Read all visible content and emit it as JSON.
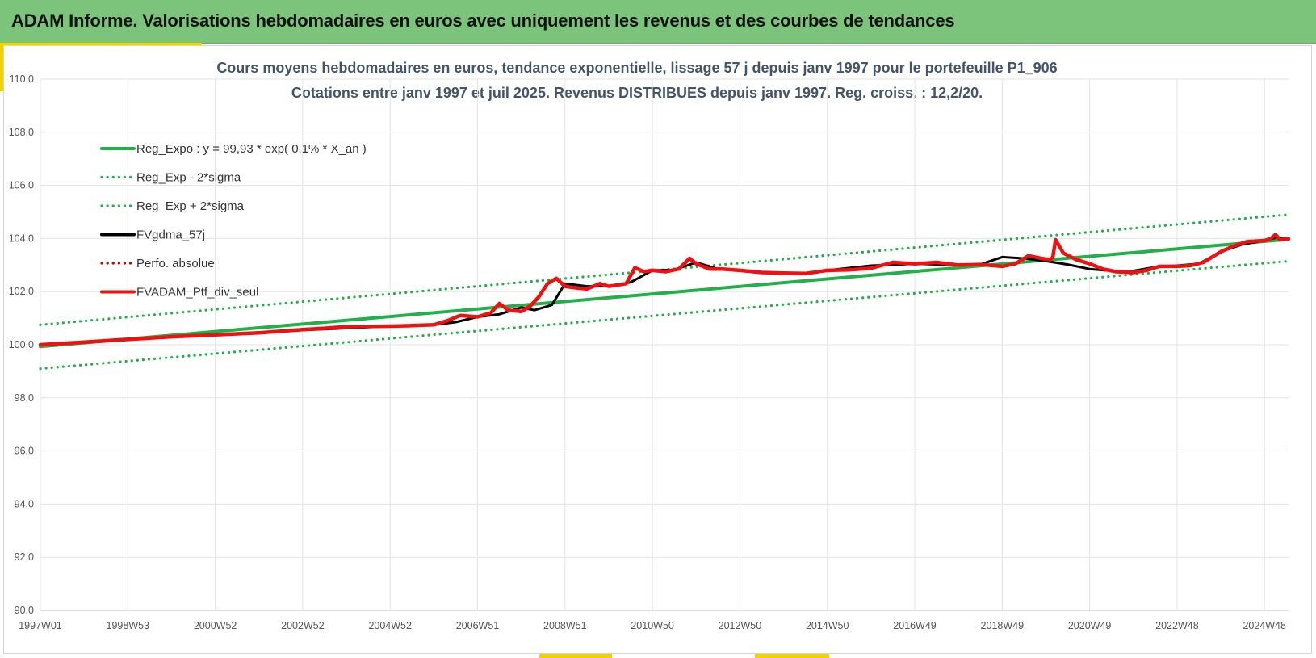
{
  "header": {
    "title": "ADAM Informe. Valorisations hebdomadaires en euros avec uniquement les revenus et des courbes de tendances"
  },
  "colors": {
    "header_bg": "#7cc47c",
    "accent": "#f2d100",
    "trend": "#22b04a",
    "fv57": "#000000",
    "main": "#ee1111",
    "title_text": "#44546a"
  },
  "chart_data": {
    "type": "line",
    "title": "Cours moyens hebdomadaires  en euros, tendance exponentielle, lissage 57 j depuis janv 1997 pour le portefeuille P1_906",
    "subtitle": "Cotations entre janv 1997 et juil 2025. Revenus DISTRIBUES depuis janv 1997. Reg. croiss. : 12,2/20.",
    "xlabel": "",
    "ylabel": "",
    "ylim": [
      90,
      110
    ],
    "yticks": [
      "110,0",
      "108,0",
      "106,0",
      "104,0",
      "102,0",
      "100,0",
      "98,0",
      "96,0",
      "94,0",
      "92,0",
      "90,0"
    ],
    "xrange": [
      1997.0,
      2025.55
    ],
    "xticks": [
      {
        "label": "1997W01",
        "x": 1997.0
      },
      {
        "label": "1998W53",
        "x": 1999.0
      },
      {
        "label": "2000W52",
        "x": 2001.0
      },
      {
        "label": "2002W52",
        "x": 2003.0
      },
      {
        "label": "2004W52",
        "x": 2005.0
      },
      {
        "label": "2006W51",
        "x": 2007.0
      },
      {
        "label": "2008W51",
        "x": 2009.0
      },
      {
        "label": "2010W50",
        "x": 2011.0
      },
      {
        "label": "2012W50",
        "x": 2013.0
      },
      {
        "label": "2014W50",
        "x": 2015.0
      },
      {
        "label": "2016W49",
        "x": 2017.0
      },
      {
        "label": "2018W49",
        "x": 2019.0
      },
      {
        "label": "2020W49",
        "x": 2021.0
      },
      {
        "label": "2022W48",
        "x": 2023.0
      },
      {
        "label": "2024W48",
        "x": 2025.0
      }
    ],
    "grid": true,
    "legend_position": "top-left",
    "series": [
      {
        "name": "Reg_Expo : y = 99,93 * exp( 0,1% *  X_an )",
        "style": "solid",
        "color": "#22b04a",
        "x": [
          1997.0,
          2025.55
        ],
        "y": [
          99.93,
          103.97
        ]
      },
      {
        "name": "Reg_Exp - 2*sigma",
        "style": "dotted",
        "color": "#22b04a",
        "x": [
          1997.0,
          2025.55
        ],
        "y": [
          99.1,
          103.15
        ]
      },
      {
        "name": "Reg_Exp + 2*sigma",
        "style": "dotted",
        "color": "#22b04a",
        "x": [
          1997.0,
          2025.55
        ],
        "y": [
          100.75,
          104.9
        ]
      },
      {
        "name": "FVgdma_57j",
        "style": "solid",
        "color": "#000000",
        "x": [
          1997.0,
          1999.0,
          2001.0,
          2003.0,
          2005.0,
          2006.0,
          2006.5,
          2007.0,
          2007.5,
          2008.0,
          2008.3,
          2008.7,
          2009.0,
          2009.5,
          2010.0,
          2010.5,
          2011.0,
          2011.5,
          2012.0,
          2012.5,
          2013.0,
          2013.5,
          2014.0,
          2014.5,
          2015.0,
          2016.0,
          2017.0,
          2018.0,
          2018.5,
          2019.0,
          2019.5,
          2020.0,
          2020.5,
          2021.0,
          2021.5,
          2022.0,
          2022.5,
          2023.0,
          2023.5,
          2024.0,
          2024.5,
          2025.0,
          2025.3,
          2025.55
        ],
        "y": [
          100.0,
          100.2,
          100.38,
          100.55,
          100.7,
          100.75,
          100.85,
          101.05,
          101.15,
          101.4,
          101.3,
          101.5,
          102.3,
          102.2,
          102.2,
          102.35,
          102.8,
          102.82,
          103.1,
          102.85,
          102.8,
          102.72,
          102.68,
          102.7,
          102.8,
          102.98,
          103.05,
          103.0,
          103.02,
          103.3,
          103.25,
          103.15,
          103.02,
          102.85,
          102.78,
          102.78,
          102.92,
          102.98,
          103.05,
          103.5,
          103.78,
          103.92,
          104.05,
          103.98
        ]
      },
      {
        "name": "Perfo. absolue",
        "style": "dotted",
        "color": "#cc0000",
        "x": [],
        "y": []
      },
      {
        "name": "FVADAM_Ptf_div_seul",
        "style": "solid",
        "color": "#ee1111",
        "x": [
          1997.0,
          1998.0,
          1999.0,
          2000.0,
          2001.0,
          2002.0,
          2003.0,
          2003.5,
          2004.0,
          2005.0,
          2005.5,
          2006.0,
          2006.3,
          2006.6,
          2007.0,
          2007.3,
          2007.5,
          2007.7,
          2008.0,
          2008.2,
          2008.4,
          2008.6,
          2008.8,
          2009.0,
          2009.2,
          2009.5,
          2009.8,
          2010.0,
          2010.2,
          2010.4,
          2010.6,
          2010.8,
          2011.0,
          2011.3,
          2011.6,
          2011.85,
          2012.0,
          2012.3,
          2012.6,
          2013.0,
          2013.5,
          2014.0,
          2014.5,
          2015.0,
          2015.5,
          2016.0,
          2016.5,
          2017.0,
          2017.5,
          2018.0,
          2018.5,
          2019.0,
          2019.3,
          2019.6,
          2019.9,
          2020.1,
          2020.16,
          2020.22,
          2020.4,
          2020.7,
          2021.0,
          2021.3,
          2021.6,
          2022.0,
          2022.3,
          2022.6,
          2023.0,
          2023.3,
          2023.6,
          2024.0,
          2024.3,
          2024.6,
          2025.0,
          2025.15,
          2025.25,
          2025.35,
          2025.55
        ],
        "y": [
          100.0,
          100.1,
          100.2,
          100.3,
          100.37,
          100.45,
          100.57,
          100.62,
          100.68,
          100.7,
          100.72,
          100.75,
          100.9,
          101.1,
          101.05,
          101.2,
          101.55,
          101.3,
          101.25,
          101.45,
          101.8,
          102.3,
          102.5,
          102.2,
          102.15,
          102.1,
          102.3,
          102.2,
          102.25,
          102.3,
          102.9,
          102.75,
          102.8,
          102.75,
          102.85,
          103.25,
          103.05,
          102.85,
          102.85,
          102.8,
          102.72,
          102.7,
          102.68,
          102.8,
          102.82,
          102.88,
          103.1,
          103.05,
          103.1,
          103.0,
          103.02,
          102.95,
          103.05,
          103.35,
          103.25,
          103.2,
          103.3,
          103.95,
          103.45,
          103.2,
          103.05,
          102.85,
          102.75,
          102.72,
          102.8,
          102.95,
          102.95,
          102.98,
          103.1,
          103.5,
          103.72,
          103.88,
          103.92,
          104.0,
          104.15,
          103.95,
          104.0
        ]
      }
    ]
  }
}
